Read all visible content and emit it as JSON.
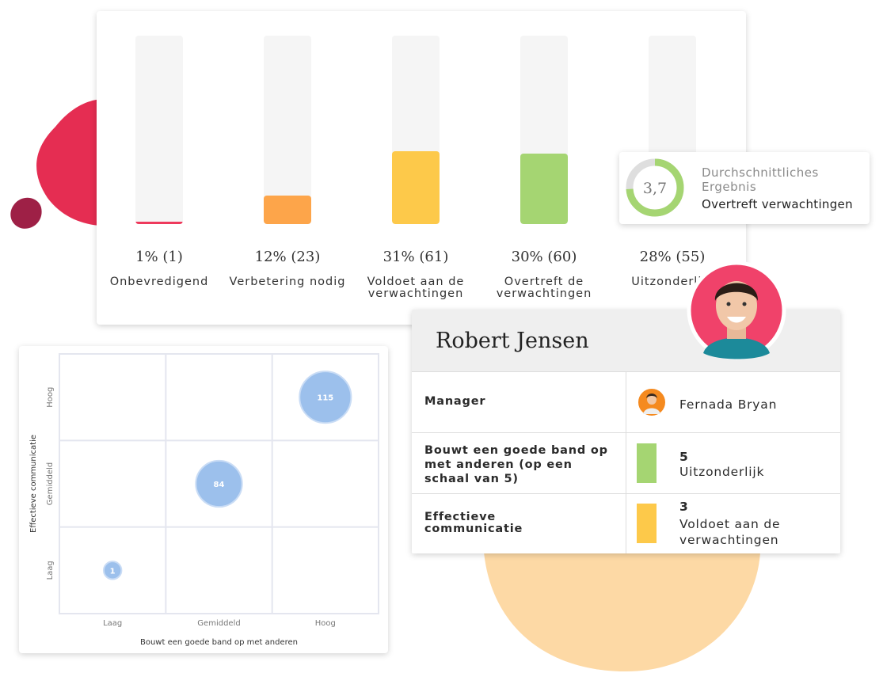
{
  "chart_data": [
    {
      "type": "bar",
      "categories": [
        "Onbevredigend",
        "Verbetering nodig",
        "Voldoet aan de verwachtingen",
        "Overtreft de verwachtingen",
        "Uitzonderlijk"
      ],
      "values": [
        1,
        12,
        31,
        30,
        28
      ],
      "value_labels": [
        "1% (1)",
        "12% (23)",
        "31% (61)",
        "30% (60)",
        "28% (55)"
      ],
      "colors": [
        "#ee3a5c",
        "#fda54a",
        "#fdc94a",
        "#a5d572",
        "#a5d572"
      ],
      "ylim": [
        0,
        80
      ]
    },
    {
      "type": "bubble",
      "x_label": "Bouwt een goede band op met anderen",
      "y_label": "Effectieve communicatie",
      "x_categories": [
        "Laag",
        "Gemiddeld",
        "Hoog"
      ],
      "y_categories": [
        "Laag",
        "Gemiddeld",
        "Hoog"
      ],
      "x": [
        "Laag",
        "Gemiddeld",
        "Hoog"
      ],
      "y": [
        "Laag",
        "Gemiddeld",
        "Hoog"
      ],
      "values": [
        1,
        84,
        115
      ],
      "color": "#9cc0ec"
    }
  ],
  "average": {
    "score": {
      "value": 3.7,
      "label": "3,7"
    },
    "range": [
      0,
      5
    ],
    "title": "Durchschnittliches Ergebnis",
    "result": "Overtreft verwachtingen",
    "color": "#a5d572"
  },
  "profile": {
    "name": "Robert Jensen",
    "rows": [
      {
        "label": "Manager",
        "value": "Fernada Bryan"
      },
      {
        "label": "Bouwt een goede band op met anderen (op een schaal van 5)",
        "score": 5,
        "rating": "Uitzonderlijk",
        "color": "#a5d572"
      },
      {
        "label": "Effectieve communicatie",
        "score": 3,
        "rating": "Voldoet aan de verwachtingen",
        "color": "#fdc94a"
      }
    ]
  }
}
